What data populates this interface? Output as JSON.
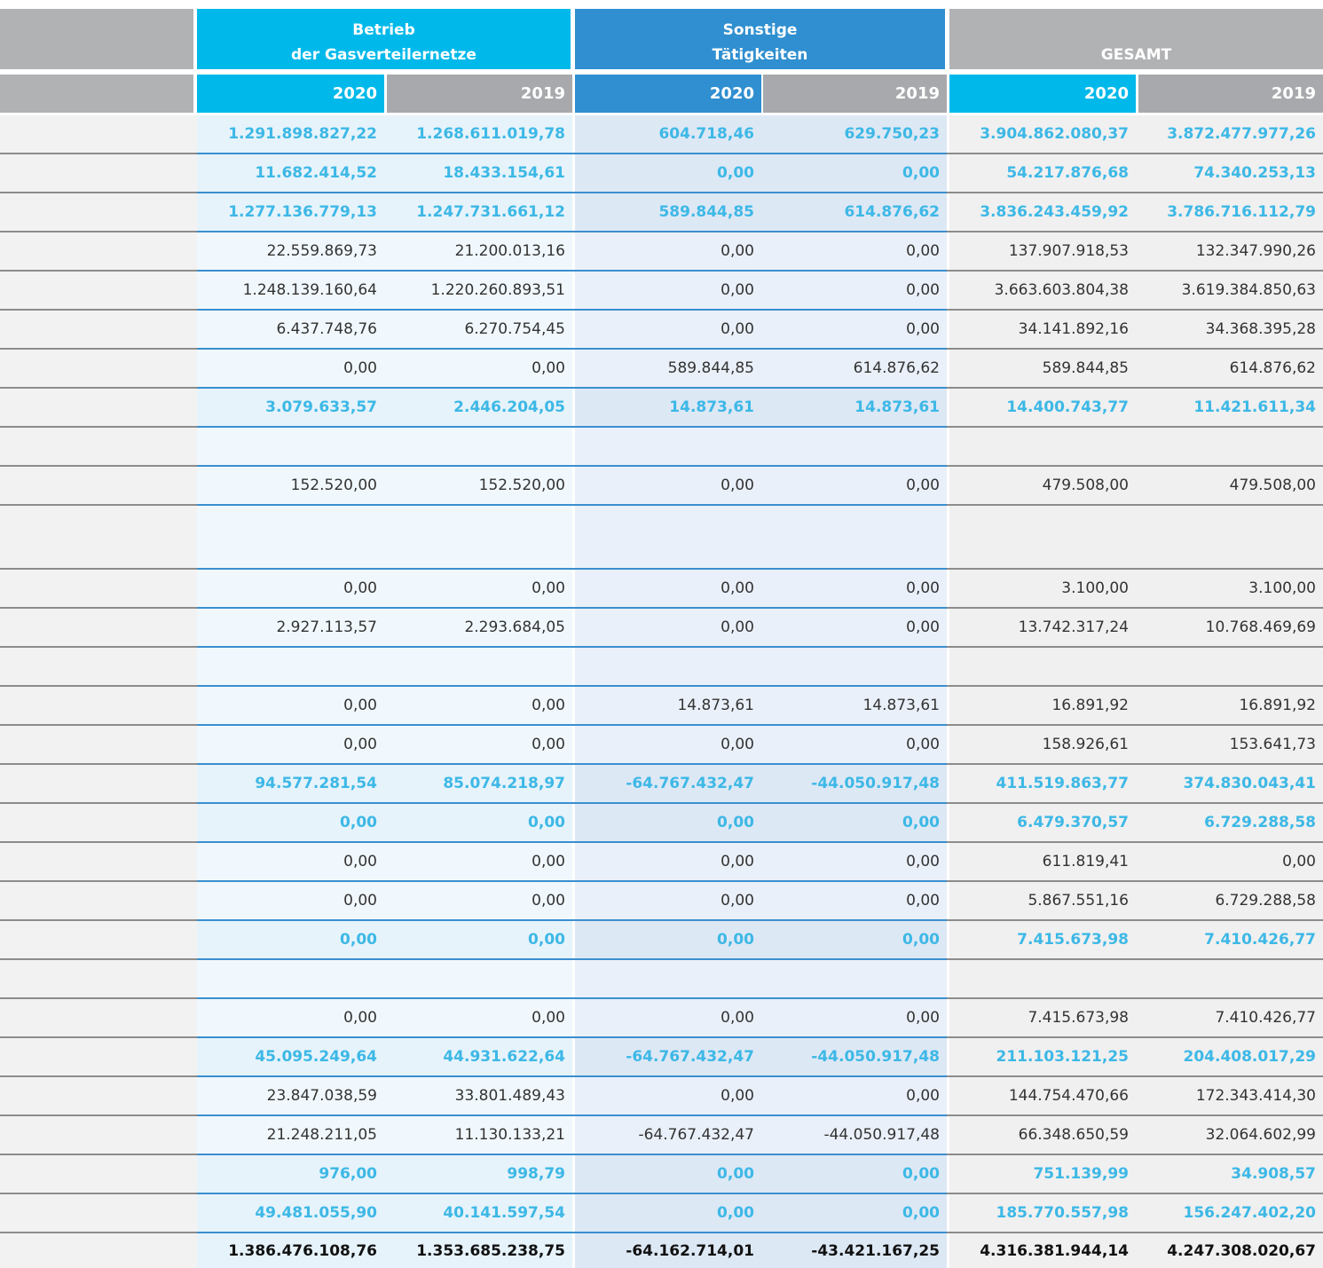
{
  "header": {
    "groups": [
      {
        "lines": [
          "Betrieb",
          "der Gasverteilernetze"
        ]
      },
      {
        "lines": [
          "Sonstige",
          "Tätigkeiten"
        ]
      },
      {
        "lines": [
          "GESAMT"
        ]
      }
    ],
    "years": [
      "2020",
      "2019",
      "2020",
      "2019",
      "2020",
      "2019"
    ]
  },
  "table": {
    "rows": [
      {
        "style": "bold",
        "cells": [
          "1.291.898.827,22",
          "1.268.611.019,78",
          "604.718,46",
          "629.750,23",
          "3.904.862.080,37",
          "3.872.477.977,26"
        ]
      },
      {
        "style": "bold",
        "cells": [
          "11.682.414,52",
          "18.433.154,61",
          "0,00",
          "0,00",
          "54.217.876,68",
          "74.340.253,13"
        ]
      },
      {
        "style": "bold",
        "cells": [
          "1.277.136.779,13",
          "1.247.731.661,12",
          "589.844,85",
          "614.876,62",
          "3.836.243.459,92",
          "3.786.716.112,79"
        ]
      },
      {
        "style": "normal",
        "cells": [
          "22.559.869,73",
          "21.200.013,16",
          "0,00",
          "0,00",
          "137.907.918,53",
          "132.347.990,26"
        ]
      },
      {
        "style": "normal",
        "cells": [
          "1.248.139.160,64",
          "1.220.260.893,51",
          "0,00",
          "0,00",
          "3.663.603.804,38",
          "3.619.384.850,63"
        ]
      },
      {
        "style": "normal",
        "cells": [
          "6.437.748,76",
          "6.270.754,45",
          "0,00",
          "0,00",
          "34.141.892,16",
          "34.368.395,28"
        ]
      },
      {
        "style": "normal",
        "cells": [
          "0,00",
          "0,00",
          "589.844,85",
          "614.876,62",
          "589.844,85",
          "614.876,62"
        ]
      },
      {
        "style": "bold",
        "cells": [
          "3.079.633,57",
          "2.446.204,05",
          "14.873,61",
          "14.873,61",
          "14.400.743,77",
          "11.421.611,34"
        ]
      },
      {
        "style": "normal",
        "cells": []
      },
      {
        "style": "normal",
        "cells": [
          "152.520,00",
          "152.520,00",
          "0,00",
          "0,00",
          "479.508,00",
          "479.508,00"
        ]
      },
      {
        "style": "normal",
        "cells": []
      },
      {
        "style": "normal",
        "cells": [
          "0,00",
          "0,00",
          "0,00",
          "0,00",
          "3.100,00",
          "3.100,00"
        ]
      },
      {
        "style": "normal",
        "cells": [
          "2.927.113,57",
          "2.293.684,05",
          "0,00",
          "0,00",
          "13.742.317,24",
          "10.768.469,69"
        ]
      },
      {
        "style": "normal",
        "cells": []
      },
      {
        "style": "normal",
        "cells": [
          "0,00",
          "0,00",
          "14.873,61",
          "14.873,61",
          "16.891,92",
          "16.891,92"
        ]
      },
      {
        "style": "normal",
        "cells": [
          "0,00",
          "0,00",
          "0,00",
          "0,00",
          "158.926,61",
          "153.641,73"
        ]
      },
      {
        "style": "bold",
        "cells": [
          "94.577.281,54",
          "85.074.218,97",
          "-64.767.432,47",
          "-44.050.917,48",
          "411.519.863,77",
          "374.830.043,41"
        ]
      },
      {
        "style": "bold",
        "cells": [
          "0,00",
          "0,00",
          "0,00",
          "0,00",
          "6.479.370,57",
          "6.729.288,58"
        ]
      },
      {
        "style": "normal",
        "cells": [
          "0,00",
          "0,00",
          "0,00",
          "0,00",
          "611.819,41",
          "0,00"
        ]
      },
      {
        "style": "normal",
        "cells": [
          "0,00",
          "0,00",
          "0,00",
          "0,00",
          "5.867.551,16",
          "6.729.288,58"
        ]
      },
      {
        "style": "bold",
        "cells": [
          "0,00",
          "0,00",
          "0,00",
          "0,00",
          "7.415.673,98",
          "7.410.426,77"
        ]
      },
      {
        "style": "normal",
        "cells": []
      },
      {
        "style": "normal",
        "cells": [
          "0,00",
          "0,00",
          "0,00",
          "0,00",
          "7.415.673,98",
          "7.410.426,77"
        ]
      },
      {
        "style": "bold",
        "cells": [
          "45.095.249,64",
          "44.931.622,64",
          "-64.767.432,47",
          "-44.050.917,48",
          "211.103.121,25",
          "204.408.017,29"
        ]
      },
      {
        "style": "normal",
        "cells": [
          "23.847.038,59",
          "33.801.489,43",
          "0,00",
          "0,00",
          "144.754.470,66",
          "172.343.414,30"
        ]
      },
      {
        "style": "normal",
        "cells": [
          "21.248.211,05",
          "11.130.133,21",
          "-64.767.432,47",
          "-44.050.917,48",
          "66.348.650,59",
          "32.064.602,99"
        ]
      },
      {
        "style": "bold",
        "cells": [
          "976,00",
          "998,79",
          "0,00",
          "0,00",
          "751.139,99",
          "34.908,57"
        ]
      },
      {
        "style": "bold",
        "cells": [
          "49.481.055,90",
          "40.141.597,54",
          "0,00",
          "0,00",
          "185.770.557,98",
          "156.247.402,20"
        ]
      },
      {
        "style": "total",
        "cells": [
          "1.386.476.108,76",
          "1.353.685.238,75",
          "-64.162.714,01",
          "-43.421.167,25",
          "4.316.381.944,14",
          "4.247.308.020,67"
        ]
      }
    ]
  }
}
